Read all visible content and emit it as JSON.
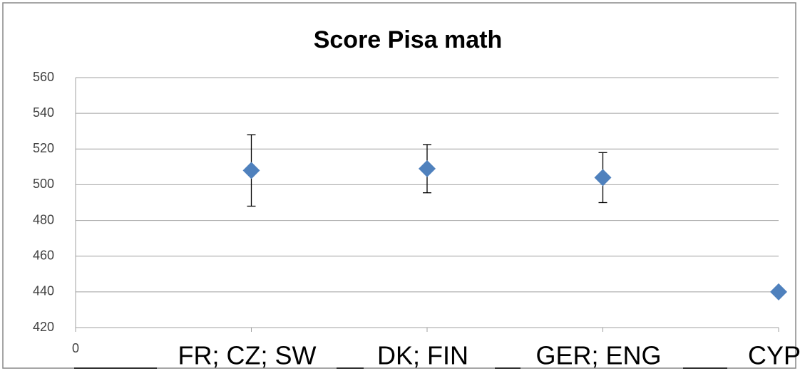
{
  "chart_data": {
    "type": "scatter",
    "title": "Score Pisa math",
    "x": [
      1,
      2,
      3,
      4
    ],
    "categories": [
      "FR; CZ; SW",
      "DK; FIN",
      "GER; ENG",
      "CYP"
    ],
    "values": [
      508,
      509,
      504,
      440
    ],
    "errors": [
      20,
      13.5,
      14,
      null
    ],
    "color": "#4f81bd",
    "xlim": [
      0,
      4
    ],
    "xticks": [
      0
    ],
    "ylim": [
      420,
      560
    ],
    "yticks": [
      420,
      440,
      460,
      480,
      500,
      520,
      540,
      560
    ],
    "grid": true
  }
}
